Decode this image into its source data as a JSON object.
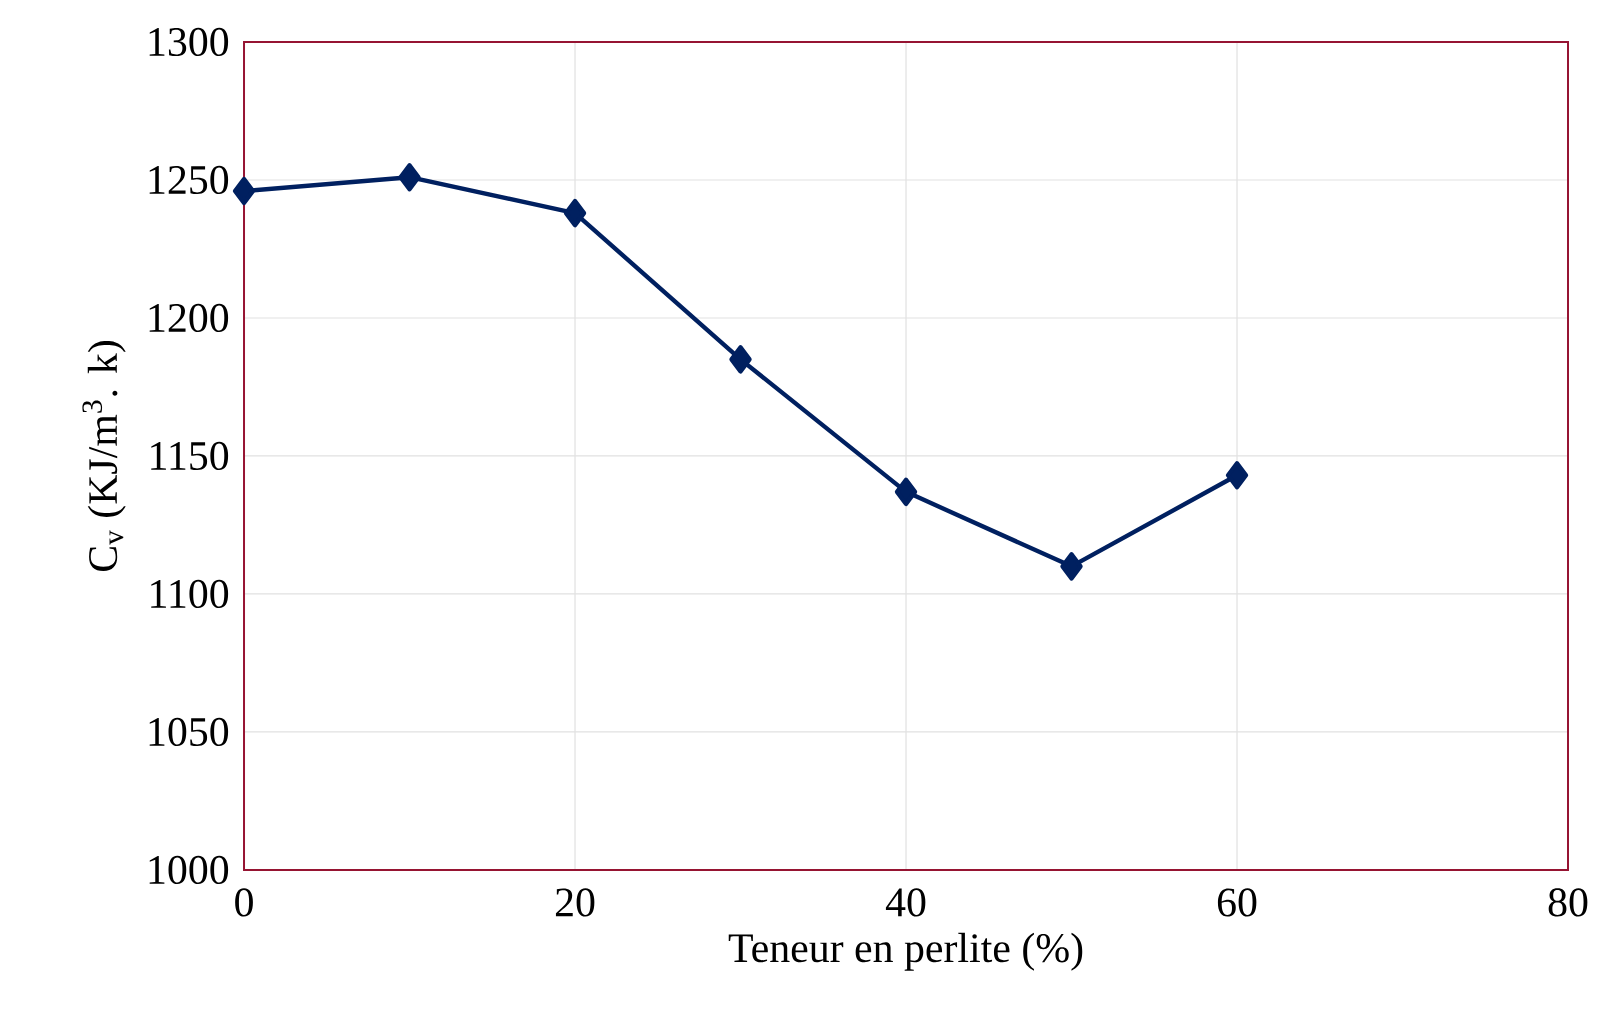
{
  "chart_data": {
    "type": "line",
    "xlabel": "Teneur en perlite (%)",
    "ylabel": "C$_{v}$ (KJ/m$^{3}$. k)",
    "x": [
      0,
      10,
      20,
      30,
      40,
      50,
      60
    ],
    "series": [
      {
        "color": "#002060",
        "values": [
          1246,
          1251,
          1238,
          1185,
          1137,
          1110,
          1143
        ]
      }
    ],
    "xlim": [
      0,
      80
    ],
    "ylim": [
      1000,
      1300
    ],
    "xticks": [
      0,
      20,
      40,
      60,
      80
    ],
    "yticks": [
      1000,
      1050,
      1100,
      1150,
      1200,
      1250,
      1300
    ],
    "grid": true,
    "marker": "diamond",
    "line_style": "solid"
  }
}
